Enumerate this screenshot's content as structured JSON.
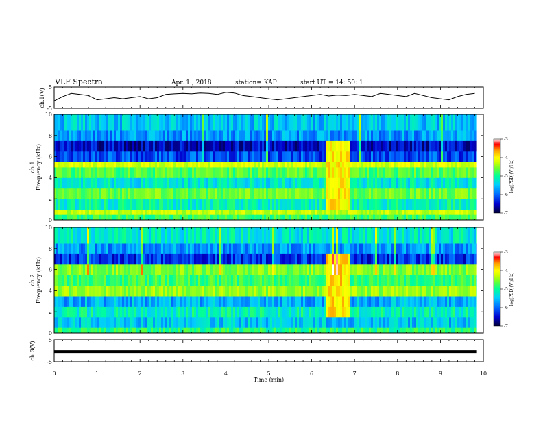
{
  "header": {
    "title": "VLF Spectra",
    "date": "Apr. 1  , 2018",
    "station": "station= KAP",
    "start_ut": "start  UT  =   14: 50: 1"
  },
  "colorbar": {
    "label": "log(PSD)(V²/Hz)",
    "ticks": [
      "-3",
      "-4",
      "-5",
      "-6",
      "-7"
    ],
    "range": [
      -7,
      -3
    ],
    "colors": [
      "#000033",
      "#0000cc",
      "#0066ff",
      "#00ccff",
      "#00ff99",
      "#66ff33",
      "#ccff00",
      "#ffff00",
      "#ff9900",
      "#ff0000",
      "#ffffff"
    ]
  },
  "chart_data": [
    {
      "type": "line",
      "name": "ch1-waveform",
      "ylabel": "ch.1(V)",
      "yticks": [
        "5",
        "-5"
      ],
      "ylim": [
        -5,
        5
      ],
      "x": [
        0,
        0.2,
        0.4,
        0.6,
        0.8,
        1.0,
        1.2,
        1.4,
        1.6,
        1.8,
        2.0,
        2.2,
        2.4,
        2.6,
        2.8,
        3.0,
        3.2,
        3.4,
        3.6,
        3.8,
        4.0,
        4.2,
        4.4,
        4.6,
        4.8,
        5.0,
        5.2,
        5.4,
        5.6,
        5.8,
        6.0,
        6.2,
        6.4,
        6.6,
        6.8,
        7.0,
        7.2,
        7.4,
        7.6,
        7.8,
        8.0,
        8.2,
        8.4,
        8.6,
        8.8,
        9.0,
        9.2,
        9.4,
        9.6,
        9.8
      ],
      "y": [
        -1.5,
        0.5,
        2.0,
        1.5,
        1.0,
        -1.0,
        -0.5,
        0.0,
        -0.5,
        0.0,
        0.5,
        -0.5,
        0.0,
        1.5,
        1.8,
        2.0,
        1.8,
        2.2,
        2.0,
        1.5,
        2.5,
        2.2,
        1.0,
        0.5,
        0.0,
        -0.5,
        -1.0,
        -0.5,
        0.0,
        0.5,
        1.0,
        1.5,
        0.8,
        1.2,
        1.0,
        1.5,
        1.0,
        0.5,
        2.0,
        1.5,
        1.0,
        0.5,
        2.0,
        1.0,
        0.0,
        -0.5,
        -1.0,
        0.5,
        1.5,
        2.0
      ]
    },
    {
      "type": "heatmap",
      "name": "ch1-spectrogram",
      "ylabel": "ch.1",
      "ylabel2": "Frequency (kHz)",
      "yticks": [
        "0",
        "2",
        "4",
        "6",
        "8",
        "10"
      ],
      "ylim": [
        0,
        10
      ],
      "xlim": [
        0,
        9.85
      ],
      "zlim": [
        -7,
        -3
      ],
      "freq_bands_khz": [
        [
          0,
          0.5
        ],
        [
          0.5,
          1.0
        ],
        [
          1.0,
          2.0
        ],
        [
          2.0,
          3.0
        ],
        [
          3.0,
          4.0
        ],
        [
          4.0,
          5.0
        ],
        [
          5.0,
          5.5
        ],
        [
          5.5,
          6.5
        ],
        [
          6.5,
          7.5
        ],
        [
          7.5,
          8.5
        ],
        [
          8.5,
          10.0
        ]
      ],
      "band_log_psd": [
        -5.2,
        -4.6,
        -5.5,
        -5.0,
        -5.6,
        -5.1,
        -4.5,
        -6.3,
        -6.6,
        -6.0,
        -5.8
      ],
      "burst_minutes": [
        6.3,
        6.9
      ],
      "burst_log_psd": -4.2
    },
    {
      "type": "heatmap",
      "name": "ch2-spectrogram",
      "ylabel": "ch.2",
      "ylabel2": "Frequency (kHz)",
      "yticks": [
        "0",
        "2",
        "4",
        "6",
        "8",
        "10"
      ],
      "ylim": [
        0,
        10
      ],
      "xlim": [
        0,
        9.85
      ],
      "zlim": [
        -7,
        -3
      ],
      "freq_bands_khz": [
        [
          0,
          0.5
        ],
        [
          0.5,
          1.5
        ],
        [
          1.5,
          2.5
        ],
        [
          2.5,
          3.5
        ],
        [
          3.5,
          4.5
        ],
        [
          4.5,
          5.5
        ],
        [
          5.5,
          6.5
        ],
        [
          6.5,
          7.5
        ],
        [
          7.5,
          8.5
        ],
        [
          8.5,
          10.0
        ]
      ],
      "band_log_psd": [
        -5.3,
        -5.8,
        -5.5,
        -5.9,
        -4.8,
        -5.2,
        -4.9,
        -6.4,
        -6.0,
        -5.6
      ],
      "burst_minutes": [
        6.3,
        6.9
      ],
      "burst_log_psd": -4.1
    },
    {
      "type": "line",
      "name": "ch3-waveform",
      "ylabel": "ch.3(V)",
      "yticks": [
        "5",
        "-5"
      ],
      "ylim": [
        -5,
        5
      ],
      "x": [
        0,
        9.85
      ],
      "y": [
        -0.5,
        -0.5
      ]
    }
  ],
  "xaxis": {
    "label": "Time  (min)",
    "ticks": [
      "0",
      "1",
      "2",
      "3",
      "4",
      "5",
      "6",
      "7",
      "8",
      "9",
      "10"
    ],
    "xlim": [
      0,
      10
    ]
  }
}
